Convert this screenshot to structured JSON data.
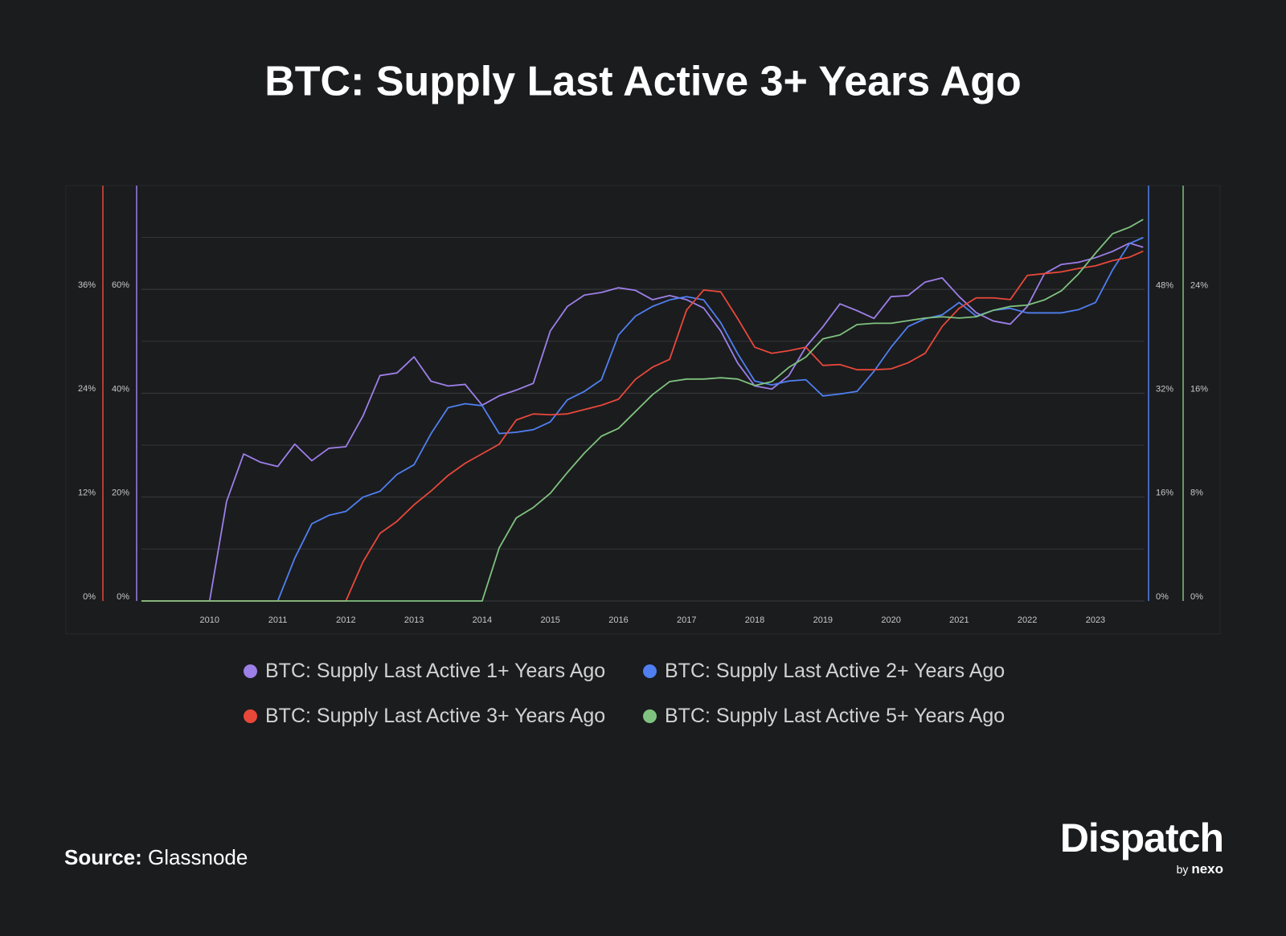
{
  "chart_data": {
    "type": "line",
    "title": "BTC: Supply Last Active 3+ Years Ago",
    "x": [
      2009,
      2009.25,
      2009.5,
      2009.75,
      2010,
      2010.25,
      2010.5,
      2010.75,
      2011,
      2011.25,
      2011.5,
      2011.75,
      2012,
      2012.25,
      2012.5,
      2012.75,
      2013,
      2013.25,
      2013.5,
      2013.75,
      2014,
      2014.25,
      2014.5,
      2014.75,
      2015,
      2015.25,
      2015.5,
      2015.75,
      2016,
      2016.25,
      2016.5,
      2016.75,
      2017,
      2017.25,
      2017.5,
      2017.75,
      2018,
      2018.25,
      2018.5,
      2018.75,
      2019,
      2019.25,
      2019.5,
      2019.75,
      2020,
      2020.25,
      2020.5,
      2020.75,
      2021,
      2021.25,
      2021.5,
      2021.75,
      2022,
      2022.25,
      2022.5,
      2022.75,
      2023,
      2023.25,
      2023.5,
      2023.7
    ],
    "xlim": [
      2009,
      2023.72
    ],
    "xticks": [
      2010,
      2011,
      2012,
      2013,
      2014,
      2015,
      2016,
      2017,
      2018,
      2019,
      2020,
      2021,
      2022,
      2023
    ],
    "grid": true,
    "series": [
      {
        "name": "BTC: Supply Last Active 1+ Years Ago",
        "color": "#9d7fe8",
        "axis": "left-inner",
        "ylim": [
          0,
          79.2
        ],
        "yticks": [
          {
            "value": 0,
            "label": "0%"
          },
          {
            "value": 20,
            "label": "20%"
          },
          {
            "value": 40,
            "label": "40%"
          },
          {
            "value": 60,
            "label": "60%"
          }
        ],
        "values": [
          0,
          0,
          0,
          0,
          0,
          19.2,
          28.3,
          26.7,
          25.9,
          30.2,
          27,
          29.4,
          29.7,
          35.6,
          43.4,
          43.9,
          47,
          42.3,
          41.4,
          41.7,
          37.7,
          39.5,
          40.6,
          41.9,
          52,
          56.7,
          58.9,
          59.4,
          60.3,
          59.8,
          58,
          58.8,
          58,
          56.4,
          52,
          45.8,
          41.4,
          40.8,
          43.4,
          48.9,
          52.8,
          57.2,
          55.9,
          54.4,
          58.6,
          58.8,
          61.4,
          62.2,
          58.6,
          55.5,
          53.9,
          53.3,
          56.7,
          63,
          64.8,
          65.2,
          66.1,
          67.3,
          68.9,
          68.1
        ]
      },
      {
        "name": "BTC: Supply Last Active 2+ Years Ago",
        "color": "#4f7ff0",
        "axis": "right-inner",
        "ylim": [
          0,
          63.4
        ],
        "yticks": [
          {
            "value": 0,
            "label": "0%"
          },
          {
            "value": 16,
            "label": "16%"
          },
          {
            "value": 32,
            "label": "32%"
          },
          {
            "value": 48,
            "label": "48%"
          }
        ],
        "values": [
          0,
          0,
          0,
          0,
          0,
          0,
          0,
          0,
          0,
          6.6,
          11.9,
          13.2,
          13.8,
          16,
          16.9,
          19.5,
          21,
          25.8,
          29.8,
          30.4,
          30.1,
          25.8,
          26,
          26.4,
          27.6,
          31,
          32.3,
          34.1,
          41,
          43.9,
          45.4,
          46.4,
          46.9,
          46.4,
          42.9,
          38.1,
          33.9,
          33.3,
          33.9,
          34.1,
          31.6,
          31.9,
          32.3,
          35.4,
          39.1,
          42.3,
          43.5,
          44.1,
          46,
          43.9,
          44.8,
          45.1,
          44.4,
          44.4,
          44.4,
          44.9,
          46,
          51,
          55.1,
          56
        ]
      },
      {
        "name": "BTC: Supply Last Active 3+ Years Ago",
        "color": "#e8483a",
        "axis": "left-outer",
        "ylim": [
          0,
          47.5
        ],
        "yticks": [
          {
            "value": 0,
            "label": "0%"
          },
          {
            "value": 12,
            "label": "12%"
          },
          {
            "value": 24,
            "label": "24%"
          },
          {
            "value": 36,
            "label": "36%"
          }
        ],
        "values": [
          0,
          0,
          0,
          0,
          0,
          0,
          0,
          0,
          0,
          0,
          0,
          0,
          0,
          4.5,
          7.8,
          9.2,
          11.1,
          12.7,
          14.5,
          15.9,
          17,
          18.1,
          20.9,
          21.6,
          21.5,
          21.6,
          22.1,
          22.6,
          23.3,
          25.6,
          27,
          27.9,
          33.6,
          35.9,
          35.7,
          32.6,
          29.3,
          28.6,
          28.9,
          29.3,
          27.2,
          27.3,
          26.7,
          26.7,
          26.8,
          27.5,
          28.6,
          31.7,
          33.8,
          35,
          35,
          34.8,
          37.6,
          37.8,
          38,
          38.4,
          38.7,
          39.3,
          39.7,
          40.4
        ]
      },
      {
        "name": "BTC: Supply Last Active 5+ Years Ago",
        "color": "#7fc27f",
        "axis": "right-outer",
        "ylim": [
          0,
          31.7
        ],
        "yticks": [
          {
            "value": 0,
            "label": "0%"
          },
          {
            "value": 8,
            "label": "8%"
          },
          {
            "value": 16,
            "label": "16%"
          },
          {
            "value": 24,
            "label": "24%"
          }
        ],
        "values": [
          0,
          0,
          0,
          0,
          0,
          0,
          0,
          0,
          0,
          0,
          0,
          0,
          0,
          0,
          0,
          0,
          0,
          0,
          0,
          0,
          0,
          4.1,
          6.4,
          7.2,
          8.3,
          9.9,
          11.4,
          12.7,
          13.3,
          14.6,
          15.9,
          16.9,
          17.1,
          17.1,
          17.2,
          17.1,
          16.6,
          16.9,
          18,
          18.8,
          20.2,
          20.5,
          21.3,
          21.4,
          21.4,
          21.6,
          21.8,
          21.9,
          21.8,
          21.9,
          22.4,
          22.7,
          22.8,
          23.2,
          23.9,
          25.2,
          26.8,
          28.3,
          28.8,
          29.4
        ]
      }
    ],
    "source": {
      "label": "Source:",
      "text": "Glassnode"
    },
    "branding": {
      "name": "Dispatch",
      "by": "by",
      "partner": "nexo"
    }
  }
}
